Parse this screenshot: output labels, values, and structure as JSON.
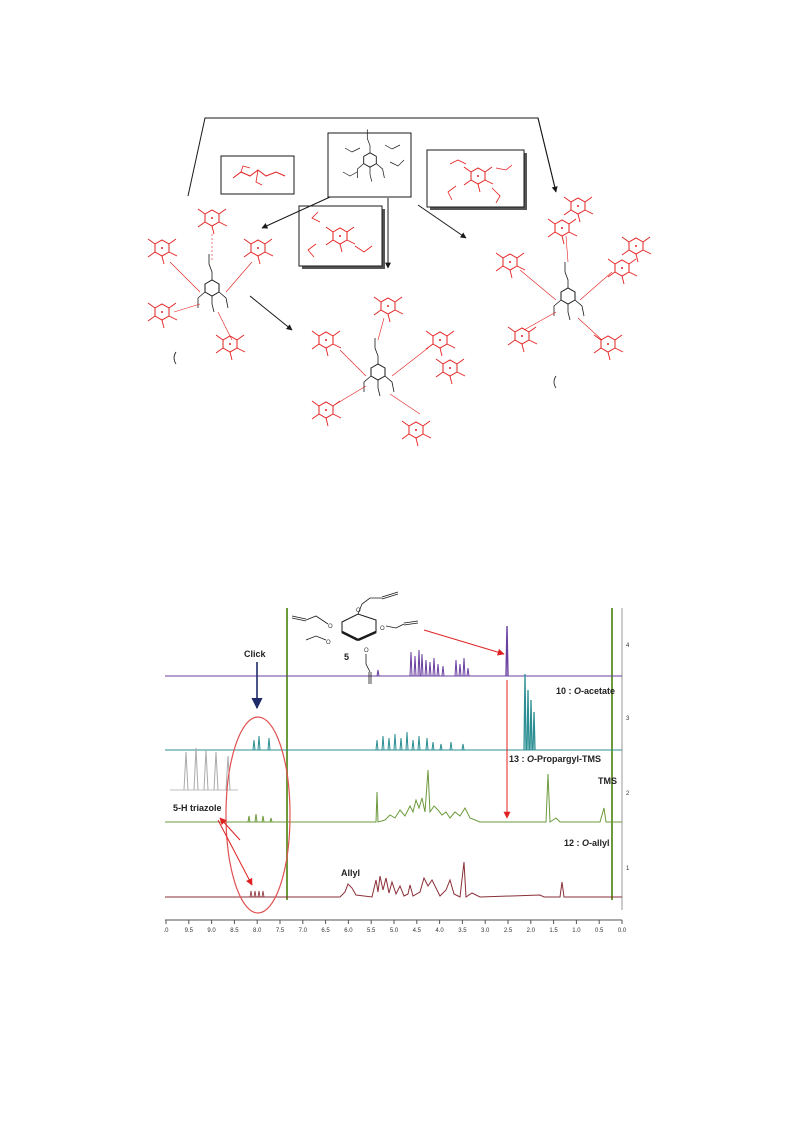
{
  "colors": {
    "scaffold": "#1a1a1a",
    "appendage": "#e52020",
    "purple": "#6a3fa0",
    "teal": "#2c8f93",
    "green": "#6c9a3c",
    "maroon": "#8a2f38",
    "red_arrow": "#e02020",
    "blue_arrow": "#1f2a6b"
  },
  "scheme": {
    "description_icons": [
      "alkyne-sugar-core",
      "red-sugar-reagent-1",
      "red-sugar-reagent-2",
      "red-sugar-reagent-3"
    ]
  },
  "nmr": {
    "compound_label": "5",
    "annotations": {
      "click": "Click",
      "triazole": "5-H triazole",
      "allyl": "Allyl",
      "tms": "TMS",
      "trace_acetate_num": "10",
      "trace_acetate_sep": " : ",
      "trace_acetate_o": "O",
      "trace_acetate_rest": "-acetate",
      "trace_tms_num": "13",
      "trace_tms_sep": " : ",
      "trace_tms_o": "O",
      "trace_tms_rest": "-Propargyl-TMS",
      "trace_allyl_num": "12",
      "trace_allyl_sep": " : ",
      "trace_allyl_o": "O",
      "trace_allyl_rest": "-allyl"
    },
    "x_ticks": [
      ".0",
      "9.5",
      "9.0",
      "8.5",
      "8.0",
      "7.5",
      "7.0",
      "6.5",
      "6.0",
      "5.5",
      "5.0",
      "4.5",
      "4.0",
      "3.5",
      "3.0",
      "2.5",
      "2.0",
      "1.5",
      "1.0",
      "0.5",
      "0.0"
    ],
    "right_ticks": [
      "4",
      "3",
      "2",
      "1"
    ]
  }
}
